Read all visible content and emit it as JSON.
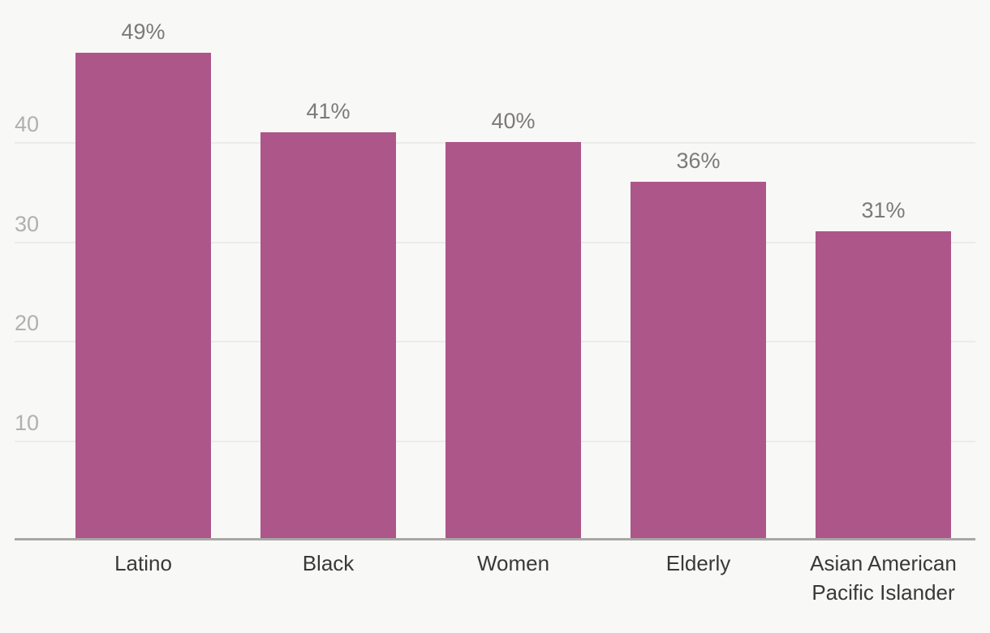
{
  "chart_data": {
    "type": "bar",
    "title": "",
    "categories": [
      "Latino",
      "Black",
      "Women",
      "Elderly",
      "Asian American\nPacific Islander"
    ],
    "values": [
      49,
      41,
      40,
      36,
      31
    ],
    "value_labels": [
      "49%",
      "41%",
      "40%",
      "36%",
      "31%"
    ],
    "yticks": [
      40,
      30,
      20,
      10
    ],
    "ylim": [
      0,
      54
    ],
    "grid": "horizontal",
    "legend": "none",
    "colors": {
      "bar": "#ad5689",
      "background": "#f8f8f7",
      "gridline": "#ebebe9",
      "axis_line": "#a9a7a6",
      "tick_label": "#b1b0af",
      "value_label": "#7c7a79",
      "category_label": "#3a3938"
    }
  }
}
